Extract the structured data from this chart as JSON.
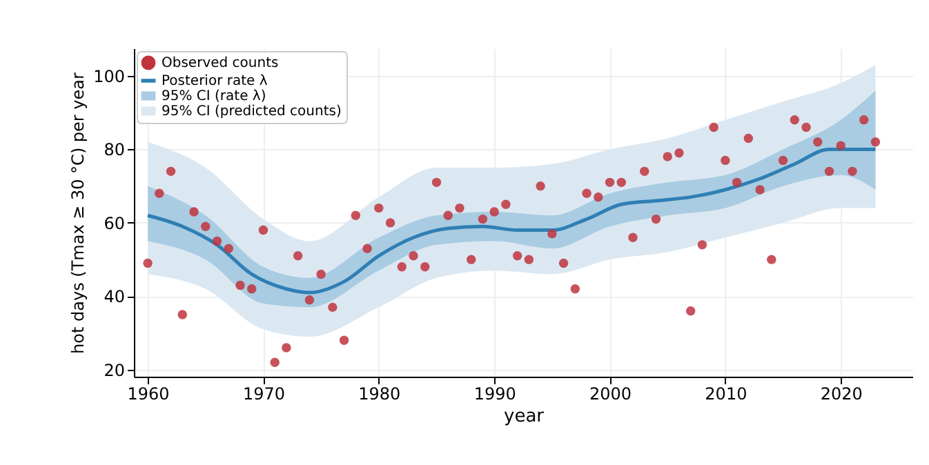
{
  "chart_data": {
    "type": "scatter",
    "xlabel": "year",
    "ylabel": "hot days (Tmax ≥ 30 °C) per year",
    "xlim": [
      1958.8,
      2026.2
    ],
    "xticks": [
      1960,
      1970,
      1980,
      1990,
      2000,
      2010,
      2020
    ],
    "ylim": [
      18.1,
      107.5
    ],
    "yticks": [
      20,
      40,
      60,
      80,
      100
    ],
    "grid": true,
    "legend": "top left",
    "x": [
      1960,
      1961,
      1962,
      1963,
      1964,
      1965,
      1966,
      1967,
      1968,
      1969,
      1970,
      1971,
      1972,
      1973,
      1974,
      1975,
      1976,
      1977,
      1978,
      1979,
      1980,
      1981,
      1982,
      1983,
      1984,
      1985,
      1986,
      1987,
      1988,
      1989,
      1990,
      1991,
      1992,
      1993,
      1994,
      1995,
      1996,
      1997,
      1998,
      1999,
      2000,
      2001,
      2002,
      2003,
      2004,
      2005,
      2006,
      2007,
      2008,
      2009,
      2010,
      2011,
      2012,
      2013,
      2014,
      2015,
      2016,
      2017,
      2018,
      2019,
      2020,
      2021,
      2022,
      2023
    ],
    "series": [
      {
        "name": "95% CI (predicted counts)",
        "type": "area",
        "color": "#dbe8f2",
        "x": [
          1960,
          1965,
          1970,
          1974,
          1980,
          1985,
          1990,
          1995,
          2000,
          2005,
          2010,
          2015,
          2020,
          2023
        ],
        "values": [
          null,
          null,
          null,
          null,
          null,
          null,
          null,
          null,
          null,
          null,
          null,
          null,
          null,
          null
        ],
        "lower": [
          46,
          42,
          31,
          29,
          37,
          45,
          47,
          46,
          50,
          52,
          56,
          60,
          64,
          64
        ],
        "upper": [
          82,
          75,
          61,
          55,
          67,
          75,
          75,
          76,
          80,
          83,
          88,
          93,
          98,
          103
        ]
      },
      {
        "name": "95% CI (rate λ)",
        "type": "area",
        "color": "#a9cce2",
        "x": [
          1960,
          1965,
          1970,
          1974,
          1980,
          1985,
          1990,
          1995,
          2000,
          2005,
          2010,
          2015,
          2020,
          2023
        ],
        "values": [
          null,
          null,
          null,
          null,
          null,
          null,
          null,
          null,
          null,
          null,
          null,
          null,
          null,
          null
        ],
        "lower": [
          55,
          50,
          38,
          37,
          47,
          54,
          55,
          53,
          59,
          62,
          64,
          70,
          73,
          69
        ],
        "upper": [
          70,
          62,
          48,
          45,
          56,
          62,
          63,
          62,
          68,
          71,
          73,
          80,
          88,
          96
        ]
      },
      {
        "name": "Posterior rate λ",
        "type": "line",
        "color": "#2f7fb5",
        "x": [
          1960,
          1963,
          1966,
          1969,
          1972,
          1974,
          1977,
          1980,
          1983,
          1986,
          1989,
          1992,
          1995,
          1998,
          2001,
          2004,
          2007,
          2010,
          2013,
          2016,
          2019,
          2023
        ],
        "values": [
          62,
          59,
          54,
          46,
          42,
          41,
          44,
          51,
          56,
          58.5,
          59,
          58,
          58,
          61,
          65,
          66,
          67,
          69,
          72,
          76,
          80,
          80
        ]
      },
      {
        "name": "Observed counts",
        "color": "#c0343e",
        "values": [
          49,
          68,
          74,
          35,
          63,
          59,
          55,
          53,
          43,
          42,
          58,
          22,
          26,
          51,
          39,
          46,
          37,
          28,
          62,
          53,
          64,
          60,
          48,
          51,
          48,
          71,
          62,
          64,
          50,
          61,
          63,
          65,
          51,
          50,
          70,
          57,
          49,
          42,
          68,
          67,
          71,
          71,
          56,
          74,
          61,
          78,
          79,
          36,
          54,
          86,
          77,
          71,
          83,
          69,
          50,
          77,
          88,
          86,
          82,
          74,
          81,
          74,
          88,
          82
        ]
      }
    ]
  }
}
